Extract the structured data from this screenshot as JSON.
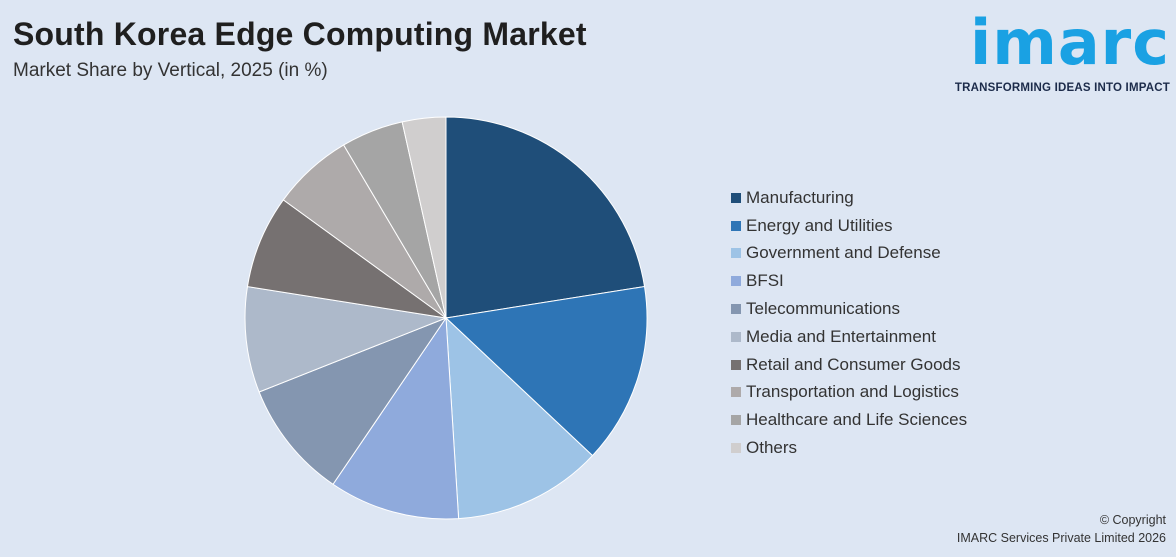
{
  "title": "South Korea Edge Computing Market",
  "subtitle": "Market Share by Vertical, 2025 (in %)",
  "logo": {
    "word": "imarc",
    "tagline": "TRANSFORMING IDEAS INTO IMPACT"
  },
  "copyright": {
    "line1": "© Copyright",
    "line2": "IMARC Services Private Limited 2026"
  },
  "chart_data": {
    "type": "pie",
    "unit": "%",
    "categories": [
      "Manufacturing",
      "Energy and Utilities",
      "Government and Defense",
      "BFSI",
      "Telecommunications",
      "Media and Entertainment",
      "Retail and Consumer Goods",
      "Transportation and Logistics",
      "Healthcare and Life Sciences",
      "Others"
    ],
    "values": [
      22.5,
      14.5,
      12.0,
      10.5,
      9.5,
      8.5,
      7.5,
      6.5,
      5.0,
      3.5
    ],
    "colors": [
      "#1f4e79",
      "#2e75b6",
      "#9dc3e6",
      "#8faadc",
      "#8496b0",
      "#adb9ca",
      "#767171",
      "#aeaaaa",
      "#a5a5a5",
      "#d0cece"
    ],
    "legend_position": "right",
    "start_angle": "top, clockwise"
  }
}
